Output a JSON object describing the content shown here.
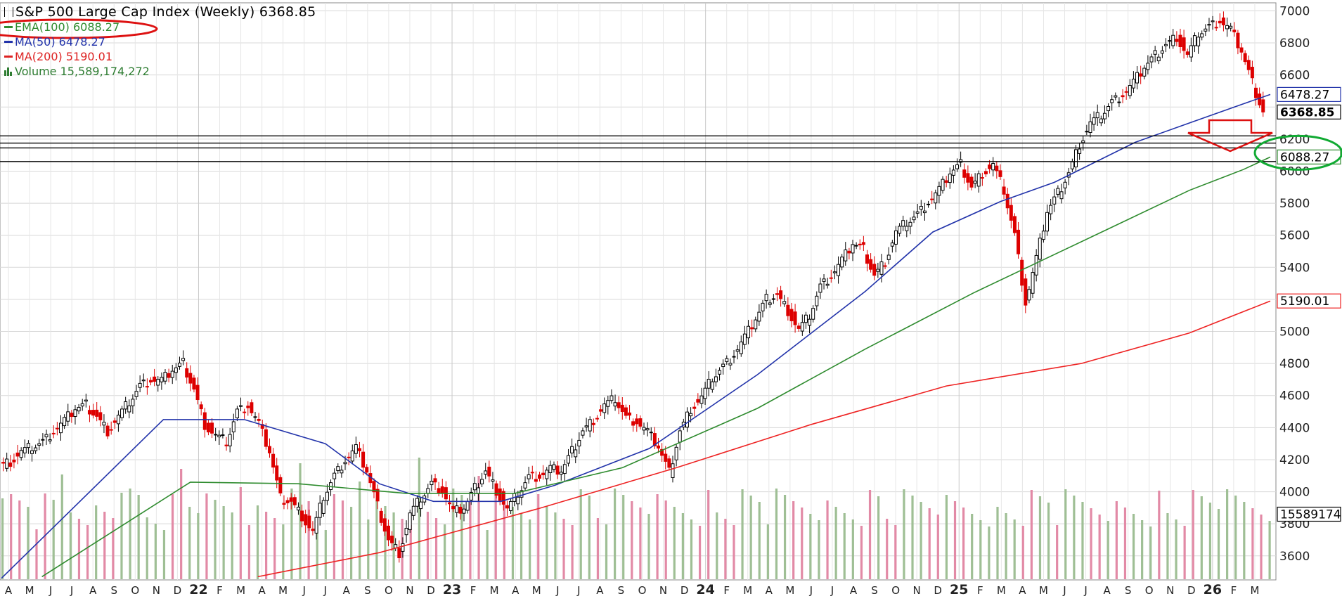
{
  "title": "S&P 500 Large Cap Index (Weekly) 6368.85",
  "legend": [
    {
      "label": "EMA(100) 6088.27",
      "color": "#2e8b2e"
    },
    {
      "label": "MA(50) 6478.27",
      "color": "#2233aa"
    },
    {
      "label": "MA(200) 5190.01",
      "color": "#dd2222"
    },
    {
      "label": "Volume 15,589,174,272",
      "color": "#2e7d32"
    }
  ],
  "colors": {
    "up": "#000000",
    "down": "#dd0000",
    "vol_up": "#9fbf95",
    "vol_down": "#e28aa6",
    "ema100": "#2e8b2e",
    "ma50": "#2233aa",
    "ma200": "#ee2222",
    "grid": "#d8d8d8",
    "annotation_red": "#dd1111",
    "annotation_green": "#11aa33"
  },
  "chart_data": {
    "type": "candlestick",
    "y_axis": {
      "ylim": [
        3450,
        7050
      ],
      "ticks": [
        3600,
        3800,
        4000,
        4200,
        4400,
        4600,
        4800,
        5000,
        5200,
        5400,
        5600,
        5800,
        6000,
        6200,
        6400,
        6600,
        6800,
        7000
      ],
      "tick_labels": [
        "3600",
        "3800",
        "4000",
        "4200",
        "4400",
        "4600",
        "4800",
        "5000",
        "",
        "5400",
        "5600",
        "5800",
        "6000",
        "6200",
        "",
        "6600",
        "6800",
        "7000"
      ]
    },
    "x_axis": {
      "labels": [
        "A",
        "M",
        "J",
        "J",
        "A",
        "S",
        "O",
        "N",
        "D",
        "22",
        "F",
        "M",
        "A",
        "M",
        "J",
        "J",
        "A",
        "S",
        "O",
        "N",
        "D",
        "23",
        "F",
        "M",
        "A",
        "M",
        "J",
        "J",
        "A",
        "S",
        "O",
        "N",
        "D",
        "24",
        "F",
        "M",
        "A",
        "M",
        "J",
        "J",
        "A",
        "S",
        "O",
        "N",
        "D",
        "25",
        "F",
        "M",
        "A",
        "M",
        "J",
        "J",
        "A",
        "S",
        "O",
        "N",
        "D",
        "26",
        "F",
        "M"
      ],
      "year_labels": [
        "22",
        "23",
        "24",
        "25",
        "26"
      ]
    },
    "price_tags": [
      {
        "label": "6478.27",
        "value": 6478.27,
        "series": "MA(50)"
      },
      {
        "label": "6368.85",
        "value": 6368.85,
        "series": "Close"
      },
      {
        "label": "6088.27",
        "value": 6088.27,
        "series": "EMA(100)"
      },
      {
        "label": "5190.01",
        "value": 5190.01,
        "series": "MA(200)"
      },
      {
        "label": "15589174",
        "value": 3860,
        "series": "Volume"
      }
    ],
    "horizontal_lines": [
      6220,
      6175,
      6145,
      6060
    ],
    "overlays": {
      "MA(50)": [
        [
          0,
          3460
        ],
        [
          60,
          4450
        ],
        [
          90,
          4450
        ],
        [
          120,
          4300
        ],
        [
          140,
          4050
        ],
        [
          160,
          3940
        ],
        [
          185,
          3940
        ],
        [
          205,
          4040
        ],
        [
          240,
          4270
        ],
        [
          280,
          4730
        ],
        [
          320,
          5250
        ],
        [
          345,
          5620
        ],
        [
          370,
          5810
        ],
        [
          390,
          5930
        ],
        [
          420,
          6180
        ],
        [
          440,
          6300
        ],
        [
          460,
          6420
        ],
        [
          470,
          6478
        ]
      ],
      "EMA(100)": [
        [
          15,
          3470
        ],
        [
          70,
          4060
        ],
        [
          110,
          4050
        ],
        [
          150,
          3990
        ],
        [
          190,
          3990
        ],
        [
          230,
          4150
        ],
        [
          280,
          4520
        ],
        [
          320,
          4890
        ],
        [
          360,
          5240
        ],
        [
          380,
          5400
        ],
        [
          410,
          5640
        ],
        [
          440,
          5880
        ],
        [
          460,
          6010
        ],
        [
          470,
          6088
        ]
      ],
      "MA(200)": [
        [
          95,
          3470
        ],
        [
          140,
          3620
        ],
        [
          200,
          3900
        ],
        [
          250,
          4150
        ],
        [
          300,
          4420
        ],
        [
          350,
          4660
        ],
        [
          400,
          4800
        ],
        [
          440,
          4990
        ],
        [
          470,
          5190
        ]
      ]
    },
    "weekly_close": [
      [
        0,
        4160
      ],
      [
        4,
        4190
      ],
      [
        8,
        4250
      ],
      [
        12,
        4280
      ],
      [
        16,
        4310
      ],
      [
        20,
        4380
      ],
      [
        24,
        4440
      ],
      [
        28,
        4520
      ],
      [
        32,
        4540
      ],
      [
        36,
        4470
      ],
      [
        40,
        4380
      ],
      [
        44,
        4470
      ],
      [
        48,
        4560
      ],
      [
        52,
        4660
      ],
      [
        56,
        4700
      ],
      [
        60,
        4690
      ],
      [
        64,
        4760
      ],
      [
        68,
        4800
      ],
      [
        72,
        4640
      ],
      [
        76,
        4420
      ],
      [
        80,
        4350
      ],
      [
        84,
        4310
      ],
      [
        88,
        4500
      ],
      [
        92,
        4540
      ],
      [
        96,
        4420
      ],
      [
        100,
        4250
      ],
      [
        104,
        3960
      ],
      [
        108,
        3940
      ],
      [
        112,
        3850
      ],
      [
        116,
        3750
      ],
      [
        120,
        3970
      ],
      [
        124,
        4100
      ],
      [
        128,
        4200
      ],
      [
        132,
        4270
      ],
      [
        136,
        4130
      ],
      [
        140,
        3910
      ],
      [
        144,
        3700
      ],
      [
        148,
        3620
      ],
      [
        152,
        3860
      ],
      [
        156,
        3960
      ],
      [
        160,
        4050
      ],
      [
        164,
        4010
      ],
      [
        168,
        3870
      ],
      [
        172,
        3900
      ],
      [
        176,
        4020
      ],
      [
        180,
        4130
      ],
      [
        184,
        4010
      ],
      [
        188,
        3890
      ],
      [
        192,
        3990
      ],
      [
        196,
        4090
      ],
      [
        200,
        4100
      ],
      [
        204,
        4140
      ],
      [
        208,
        4130
      ],
      [
        212,
        4250
      ],
      [
        216,
        4380
      ],
      [
        220,
        4450
      ],
      [
        224,
        4540
      ],
      [
        228,
        4580
      ],
      [
        232,
        4460
      ],
      [
        236,
        4440
      ],
      [
        240,
        4370
      ],
      [
        244,
        4280
      ],
      [
        248,
        4120
      ],
      [
        252,
        4380
      ],
      [
        256,
        4520
      ],
      [
        260,
        4590
      ],
      [
        264,
        4710
      ],
      [
        268,
        4780
      ],
      [
        272,
        4860
      ],
      [
        276,
        4960
      ],
      [
        280,
        5080
      ],
      [
        284,
        5200
      ],
      [
        288,
        5230
      ],
      [
        292,
        5130
      ],
      [
        296,
        5010
      ],
      [
        300,
        5100
      ],
      [
        304,
        5280
      ],
      [
        308,
        5350
      ],
      [
        312,
        5440
      ],
      [
        316,
        5550
      ],
      [
        320,
        5510
      ],
      [
        324,
        5350
      ],
      [
        328,
        5440
      ],
      [
        332,
        5620
      ],
      [
        336,
        5680
      ],
      [
        340,
        5730
      ],
      [
        344,
        5810
      ],
      [
        348,
        5880
      ],
      [
        352,
        5990
      ],
      [
        356,
        6040
      ],
      [
        360,
        5900
      ],
      [
        364,
        5990
      ],
      [
        368,
        6040
      ],
      [
        372,
        5880
      ],
      [
        376,
        5600
      ],
      [
        380,
        5180
      ],
      [
        384,
        5450
      ],
      [
        388,
        5750
      ],
      [
        392,
        5860
      ],
      [
        396,
        5990
      ],
      [
        400,
        6170
      ],
      [
        404,
        6300
      ],
      [
        408,
        6350
      ],
      [
        412,
        6430
      ],
      [
        416,
        6480
      ],
      [
        420,
        6550
      ],
      [
        424,
        6650
      ],
      [
        428,
        6720
      ],
      [
        432,
        6790
      ],
      [
        436,
        6840
      ],
      [
        440,
        6720
      ],
      [
        444,
        6860
      ],
      [
        448,
        6900
      ],
      [
        452,
        6940
      ],
      [
        456,
        6880
      ],
      [
        460,
        6750
      ],
      [
        464,
        6550
      ],
      [
        468,
        6368.85
      ]
    ],
    "volume_max_label": "15589174"
  }
}
